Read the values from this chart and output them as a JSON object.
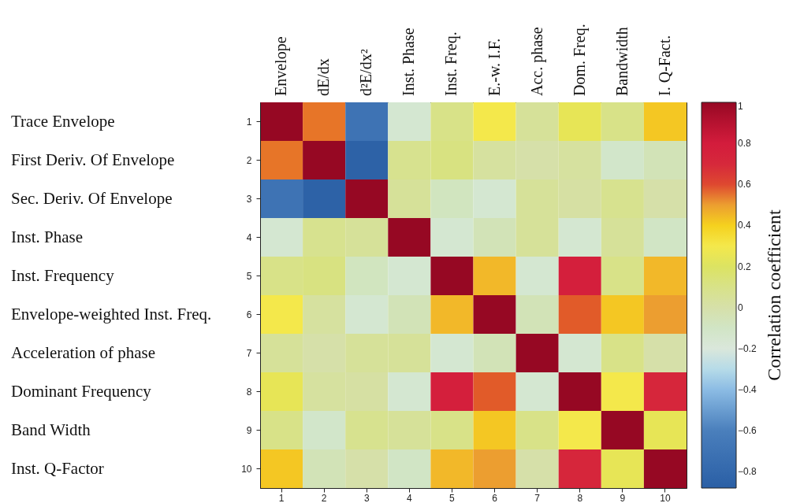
{
  "chart_data": {
    "type": "heatmap",
    "clabel": "Correlation coefficient",
    "categories": [
      "Envelope",
      "dE/dx",
      "d²E/dx²",
      "Inst. Phase",
      "Inst. Freq.",
      "E.-w. I.F.",
      "Acc. phase",
      "Dom. Freq.",
      "Bandwidth",
      "I. Q-Fact."
    ],
    "annotations": [
      "1",
      "2",
      "3",
      "4",
      "5",
      "6",
      "7",
      "8",
      "9",
      "10"
    ],
    "y_categories": [
      "Trace Envelope",
      "First Deriv. Of Envelope",
      "Sec. Deriv. Of Envelope",
      "Inst. Phase",
      "Inst. Frequency",
      "Envelope-weighted Inst. Freq.",
      "Acceleration of phase",
      "Dominant Frequency",
      "Band Width",
      "Inst. Q-Factor"
    ],
    "y2_categories": [
      "1",
      "2",
      "3",
      "4",
      "5",
      "6",
      "7",
      "8",
      "9",
      "10"
    ],
    "cells": [
      [
        1,
        0.55,
        -0.7,
        -0.15,
        0.1,
        0.3,
        0.05,
        0.25,
        0.1,
        0.42
      ],
      [
        0.55,
        1,
        -0.85,
        0.08,
        0.12,
        0.03,
        0.0,
        0.03,
        -0.12,
        -0.05
      ],
      [
        -0.7,
        -0.85,
        1,
        0.05,
        -0.08,
        -0.15,
        0.05,
        0.02,
        0.08,
        0.0
      ],
      [
        -0.15,
        0.08,
        0.05,
        1,
        -0.15,
        -0.05,
        0.05,
        -0.15,
        0.05,
        -0.1
      ],
      [
        0.1,
        0.12,
        -0.08,
        -0.15,
        1,
        0.45,
        -0.15,
        0.78,
        0.1,
        0.45
      ],
      [
        0.3,
        0.03,
        -0.15,
        -0.05,
        0.45,
        1,
        -0.05,
        0.58,
        0.42,
        0.5
      ],
      [
        0.05,
        0.0,
        0.05,
        0.05,
        -0.15,
        -0.05,
        1,
        -0.15,
        0.1,
        0.0
      ],
      [
        0.25,
        0.03,
        0.02,
        -0.15,
        0.78,
        0.58,
        -0.15,
        1,
        0.3,
        0.72
      ],
      [
        0.1,
        -0.12,
        0.08,
        0.05,
        0.1,
        0.42,
        0.1,
        0.3,
        1,
        0.25
      ],
      [
        0.42,
        -0.05,
        0.0,
        -0.1,
        0.45,
        0.5,
        0.0,
        0.72,
        0.25,
        1
      ]
    ],
    "clim": [
      -0.88,
      1
    ],
    "cticks": [
      -0.8,
      -0.6,
      -0.4,
      -0.2,
      0,
      0.2,
      0.4,
      0.6,
      0.8,
      1
    ]
  }
}
